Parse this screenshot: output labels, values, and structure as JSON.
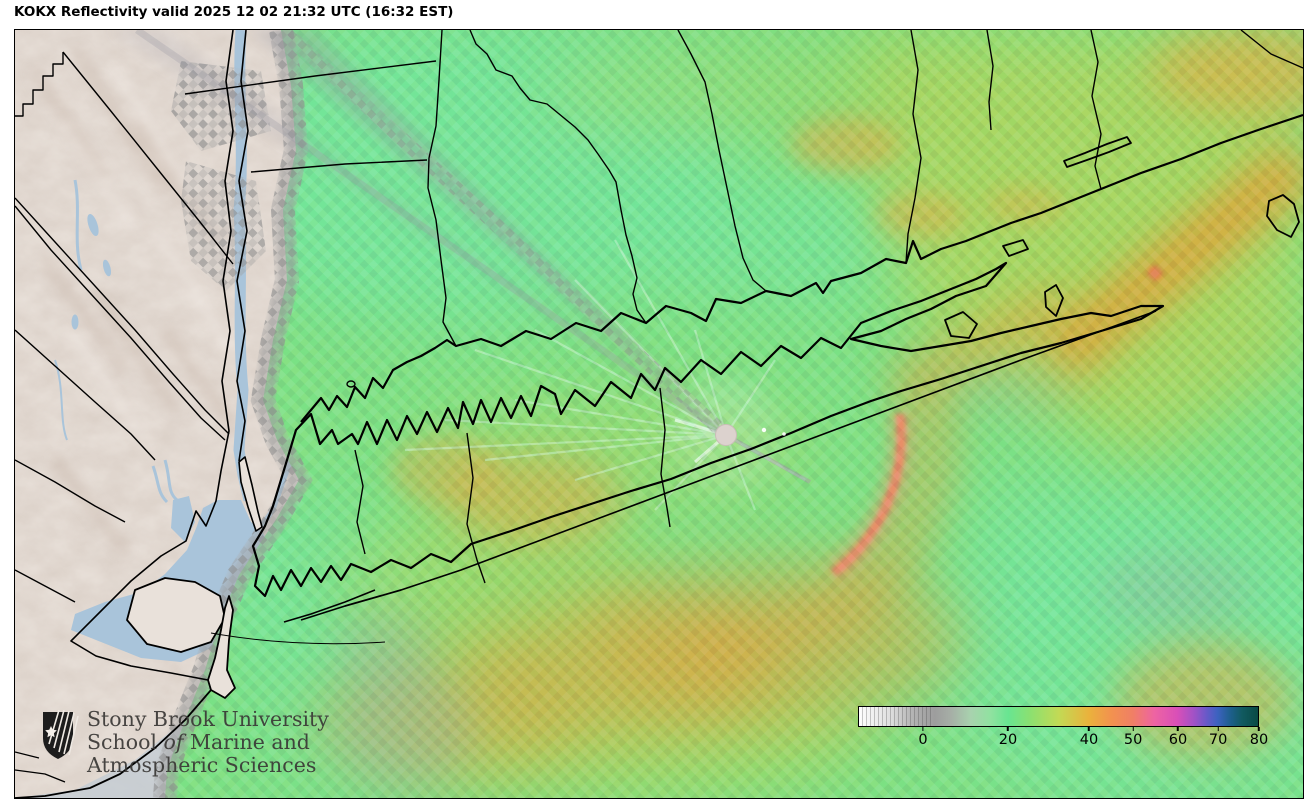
{
  "header": {
    "title": "KOKX Reflectivity valid 2025 12 02 21:32 UTC (16:32 EST)"
  },
  "logo": {
    "line1": "Stony Brook University",
    "line2_pre": "School ",
    "line2_italic": "of",
    "line2_post": " Marine and",
    "line3": "Atmospheric Sciences"
  },
  "colorbar": {
    "ticks": [
      {
        "label": "0",
        "pct": 16.2
      },
      {
        "label": "20",
        "pct": 37.4
      },
      {
        "label": "40",
        "pct": 57.6
      },
      {
        "label": "50",
        "pct": 68.6
      },
      {
        "label": "60",
        "pct": 79.8
      },
      {
        "label": "70",
        "pct": 89.8
      },
      {
        "label": "80",
        "pct": 100
      }
    ],
    "gradient": [
      [
        "0%",
        "#ffffff"
      ],
      [
        "8%",
        "#dedede"
      ],
      [
        "13%",
        "#b6b6b6"
      ],
      [
        "16.2%",
        "#a6a6a6"
      ],
      [
        "19%",
        "#9d9d9d"
      ],
      [
        "23%",
        "#a6aea6"
      ],
      [
        "28%",
        "#a8d2ae"
      ],
      [
        "33%",
        "#90e2a0"
      ],
      [
        "37.4%",
        "#68e591"
      ],
      [
        "43%",
        "#8ce070"
      ],
      [
        "50%",
        "#c2da55"
      ],
      [
        "57.6%",
        "#eab23c"
      ],
      [
        "63%",
        "#f2934e"
      ],
      [
        "68.6%",
        "#f07f65"
      ],
      [
        "74%",
        "#ee64a2"
      ],
      [
        "79.8%",
        "#d94fb8"
      ],
      [
        "84%",
        "#a052c6"
      ],
      [
        "87%",
        "#6a59c8"
      ],
      [
        "89.8%",
        "#3d62c0"
      ],
      [
        "93%",
        "#1e5f8e"
      ],
      [
        "96%",
        "#115a60"
      ],
      [
        "100%",
        "#0a4a44"
      ]
    ],
    "striped_fraction_pct": 18.5
  },
  "map_colors": {
    "terrain": "#e9e1da",
    "water": "#a9c4da",
    "echo_base": "#7fe187",
    "echo_mint": "#74e7a2",
    "echo_olive": "#b7d356",
    "echo_orange": "#e8a640",
    "echo_salmon": "#ee8468",
    "echo_gray": "#9f9f9f",
    "radar_dot": "#dcd2ce",
    "boundary": "#000000"
  }
}
